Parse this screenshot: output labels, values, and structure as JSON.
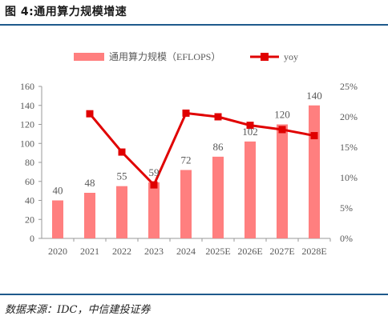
{
  "header": {
    "title": "图 4:通用算力规模增速"
  },
  "footer": {
    "source": "数据来源：IDC，中信建投证券"
  },
  "colors": {
    "bar": "#FF7F7F",
    "line": "#E00000",
    "rule": "#1F5A8C",
    "axis": "#999999",
    "text": "#595959"
  },
  "chart_data": {
    "type": "bar",
    "categories": [
      "2020",
      "2021",
      "2022",
      "2023",
      "2024",
      "2025E",
      "2026E",
      "2027E",
      "2028E"
    ],
    "series": [
      {
        "name": "通用算力规模（EFLOPS）",
        "type": "bar",
        "axis": "left",
        "values": [
          40,
          48,
          55,
          59,
          72,
          86,
          102,
          120,
          140
        ]
      },
      {
        "name": "yoy",
        "type": "line",
        "axis": "right",
        "values": [
          null,
          20.5,
          14.2,
          8.8,
          20.6,
          20.0,
          18.6,
          17.9,
          16.9
        ]
      }
    ],
    "bar_labels": [
      "40",
      "48",
      "55",
      "59",
      "72",
      "86",
      "102",
      "120",
      "140"
    ],
    "y_left": {
      "ylim": [
        0,
        160
      ],
      "ticks": [
        "0",
        "20",
        "40",
        "60",
        "80",
        "100",
        "120",
        "140",
        "160"
      ]
    },
    "y_right": {
      "ylim": [
        0,
        25
      ],
      "ticks": [
        "0%",
        "5%",
        "10%",
        "15%",
        "20%",
        "25%"
      ]
    },
    "legend_position": "top-center",
    "grid": false
  }
}
